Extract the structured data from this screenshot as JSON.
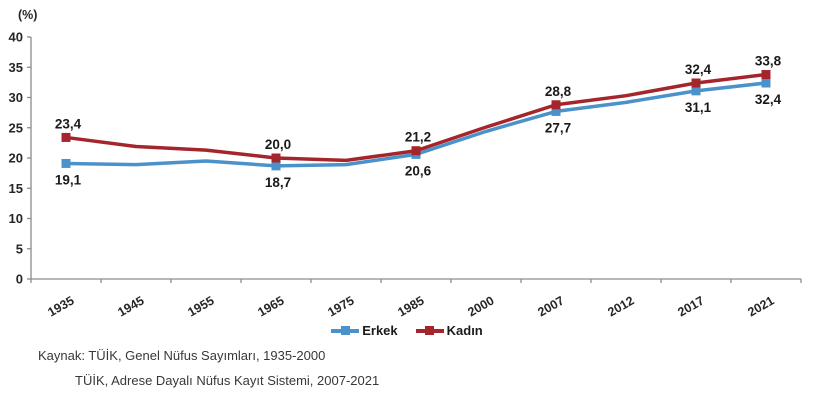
{
  "chart_data": {
    "type": "line",
    "unit_label": "(%)",
    "categories": [
      "1935",
      "1945",
      "1955",
      "1965",
      "1975",
      "1985",
      "2000",
      "2007",
      "2012",
      "2017",
      "2021"
    ],
    "yticks": [
      0,
      5,
      10,
      15,
      20,
      25,
      30,
      35,
      40
    ],
    "ylim": [
      0,
      40
    ],
    "grid": "off",
    "legend_position": "bottom",
    "series": [
      {
        "name": "Erkek",
        "color": "#4B92CA",
        "marker": "square",
        "label_position": "below",
        "values": [
          19.1,
          18.9,
          19.5,
          18.7,
          18.9,
          20.6,
          24.4,
          27.7,
          29.2,
          31.1,
          32.4
        ],
        "point_labels": [
          "19,1",
          null,
          null,
          "18,7",
          null,
          "20,6",
          null,
          "27,7",
          null,
          "31,1",
          "32,4"
        ]
      },
      {
        "name": "Kadın",
        "color": "#A4262C",
        "marker": "square",
        "label_position": "above",
        "values": [
          23.4,
          21.9,
          21.3,
          20.0,
          19.6,
          21.2,
          25.1,
          28.8,
          30.3,
          32.4,
          33.8
        ],
        "point_labels": [
          "23,4",
          null,
          null,
          "20,0",
          null,
          "21,2",
          null,
          "28,8",
          null,
          "32,4",
          "33,8"
        ]
      }
    ],
    "colors": {
      "axis": "#8c8c8c",
      "tick_label": "#262626",
      "point_label": "#1a1a1a"
    }
  },
  "source": {
    "line1": "Kaynak: TÜİK, Genel Nüfus Sayımları, 1935-2000",
    "line2": "TÜİK, Adrese Dayalı Nüfus Kayıt Sistemi, 2007-2021"
  }
}
